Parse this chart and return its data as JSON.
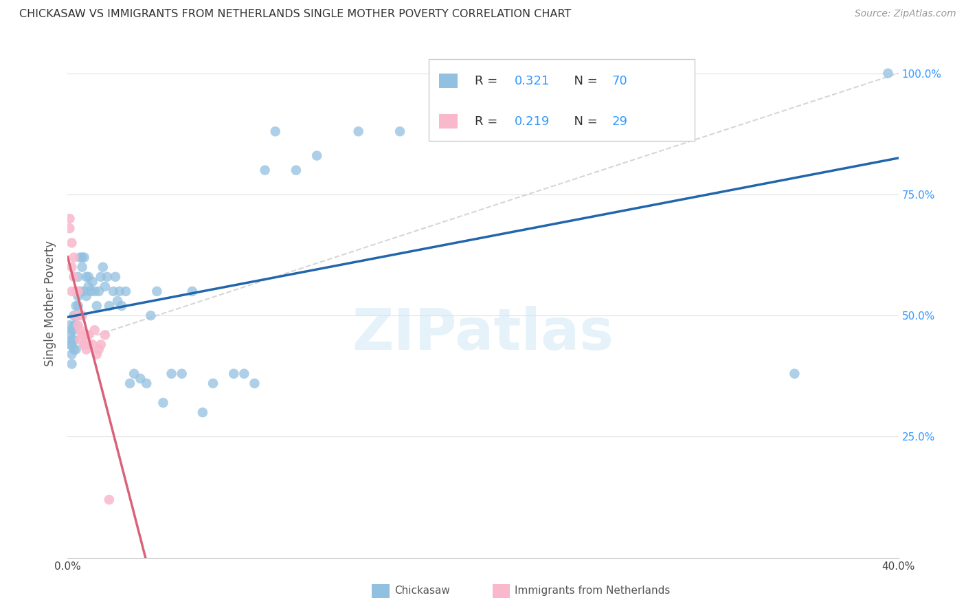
{
  "title": "CHICKASAW VS IMMIGRANTS FROM NETHERLANDS SINGLE MOTHER POVERTY CORRELATION CHART",
  "source": "Source: ZipAtlas.com",
  "ylabel": "Single Mother Poverty",
  "legend_1_label": "Chickasaw",
  "legend_2_label": "Immigrants from Netherlands",
  "R1": 0.321,
  "N1": 70,
  "R2": 0.219,
  "N2": 29,
  "blue_color": "#92c0e0",
  "pink_color": "#f9b8cb",
  "blue_line_color": "#2166ac",
  "pink_line_color": "#d9627a",
  "diagonal_color": "#cccccc",
  "watermark": "ZIPatlas",
  "chickasaw_x": [
    0.001,
    0.001,
    0.001,
    0.002,
    0.002,
    0.002,
    0.002,
    0.002,
    0.003,
    0.003,
    0.003,
    0.003,
    0.003,
    0.004,
    0.004,
    0.004,
    0.004,
    0.005,
    0.005,
    0.005,
    0.005,
    0.006,
    0.006,
    0.007,
    0.007,
    0.008,
    0.008,
    0.009,
    0.009,
    0.01,
    0.01,
    0.011,
    0.012,
    0.013,
    0.014,
    0.015,
    0.016,
    0.017,
    0.018,
    0.019,
    0.02,
    0.022,
    0.023,
    0.024,
    0.025,
    0.026,
    0.028,
    0.03,
    0.032,
    0.035,
    0.038,
    0.04,
    0.043,
    0.046,
    0.05,
    0.055,
    0.06,
    0.065,
    0.07,
    0.08,
    0.085,
    0.09,
    0.095,
    0.1,
    0.11,
    0.12,
    0.14,
    0.16,
    0.35,
    0.395
  ],
  "chickasaw_y": [
    0.44,
    0.46,
    0.48,
    0.42,
    0.45,
    0.44,
    0.47,
    0.4,
    0.45,
    0.47,
    0.43,
    0.5,
    0.48,
    0.5,
    0.52,
    0.48,
    0.43,
    0.5,
    0.54,
    0.58,
    0.52,
    0.55,
    0.62,
    0.62,
    0.6,
    0.55,
    0.62,
    0.58,
    0.54,
    0.56,
    0.58,
    0.55,
    0.57,
    0.55,
    0.52,
    0.55,
    0.58,
    0.6,
    0.56,
    0.58,
    0.52,
    0.55,
    0.58,
    0.53,
    0.55,
    0.52,
    0.55,
    0.36,
    0.38,
    0.37,
    0.36,
    0.5,
    0.55,
    0.32,
    0.38,
    0.38,
    0.55,
    0.3,
    0.36,
    0.38,
    0.38,
    0.36,
    0.8,
    0.88,
    0.8,
    0.83,
    0.88,
    0.88,
    0.38,
    1.0
  ],
  "netherlands_x": [
    0.001,
    0.001,
    0.002,
    0.002,
    0.002,
    0.003,
    0.003,
    0.004,
    0.004,
    0.005,
    0.005,
    0.005,
    0.006,
    0.006,
    0.007,
    0.007,
    0.008,
    0.008,
    0.009,
    0.009,
    0.01,
    0.01,
    0.012,
    0.013,
    0.014,
    0.015,
    0.016,
    0.018,
    0.02
  ],
  "netherlands_y": [
    0.7,
    0.68,
    0.65,
    0.6,
    0.55,
    0.62,
    0.58,
    0.55,
    0.5,
    0.55,
    0.5,
    0.48,
    0.47,
    0.45,
    0.5,
    0.46,
    0.44,
    0.44,
    0.46,
    0.43,
    0.44,
    0.46,
    0.44,
    0.47,
    0.42,
    0.43,
    0.44,
    0.46,
    0.12
  ],
  "xmin": 0.0,
  "xmax": 0.4,
  "ymin": 0.0,
  "ymax": 1.05
}
